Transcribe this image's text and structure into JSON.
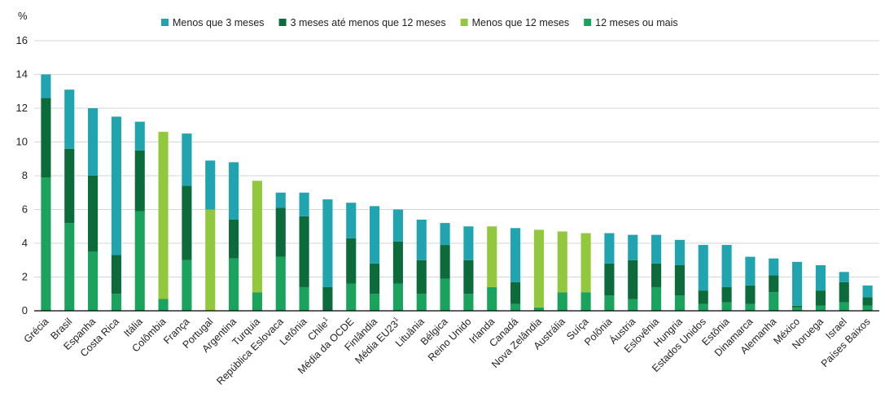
{
  "chart_data": {
    "type": "bar",
    "stacked": true,
    "ylabel": "%",
    "ylim": [
      0,
      16
    ],
    "yticks": [
      0,
      2,
      4,
      6,
      8,
      10,
      12,
      14,
      16
    ],
    "grid": true,
    "legend_position": "top",
    "categories": [
      "Grécia",
      "Brasil",
      "Espanha",
      "Costa Rica",
      "Itália",
      "Colômbia",
      "França",
      "Portugal",
      "Argentina",
      "Turquia",
      "República Eslovaca",
      "Letônia",
      "Chile",
      "Média da OCDE",
      "Finlândia",
      "Média EU23",
      "Lituânia",
      "Bélgica",
      "Reino Unido",
      "Irlanda",
      "Canadá",
      "Nova Zelândia",
      "Austrália",
      "Suíça",
      "Polônia",
      "Áustria",
      "Eslovênia",
      "Hungria",
      "Estados Unidos",
      "Estônia",
      "Dinamarca",
      "Alemanha",
      "México",
      "Noruega",
      "Israel",
      "Países Baixos"
    ],
    "category_suffixes": [
      "",
      "",
      "",
      "",
      "",
      "",
      "",
      "",
      "",
      "",
      "",
      "",
      "1",
      "",
      "",
      "1",
      "",
      "",
      "",
      "",
      "",
      "",
      "",
      "",
      "",
      "",
      "",
      "",
      "",
      "",
      "",
      "",
      "",
      "",
      "",
      ""
    ],
    "series": [
      {
        "name": "12 meses ou mais",
        "color": "#1aa35c",
        "values": [
          7.9,
          5.2,
          3.5,
          1.0,
          5.9,
          0.7,
          3.0,
          0,
          3.1,
          1.1,
          3.2,
          1.4,
          0,
          1.6,
          1.0,
          1.6,
          1.0,
          1.9,
          1.0,
          1.4,
          0.4,
          0.2,
          1.1,
          1.1,
          0.9,
          0.7,
          1.4,
          0.9,
          0.4,
          0.5,
          0.4,
          1.1,
          0.2,
          0.3,
          0.5,
          0.3
        ]
      },
      {
        "name": "3 meses até menos que 12 meses",
        "color": "#0b6b3a",
        "values": [
          4.7,
          4.4,
          4.5,
          2.3,
          3.6,
          0,
          4.4,
          0,
          2.3,
          0,
          2.9,
          4.2,
          1.4,
          2.7,
          1.8,
          2.5,
          2.0,
          2.0,
          2.0,
          0,
          1.3,
          0,
          0,
          0,
          1.9,
          2.3,
          1.4,
          1.8,
          0.8,
          0.9,
          1.1,
          1.0,
          0.1,
          0.9,
          1.2,
          0.5
        ]
      },
      {
        "name": "Menos que 12 meses",
        "color": "#92c83e",
        "values": [
          0,
          0,
          0,
          0,
          0,
          9.9,
          0,
          6.0,
          0,
          6.6,
          0,
          0,
          0,
          0,
          0,
          0,
          0,
          0,
          0,
          3.6,
          0,
          4.6,
          3.6,
          3.5,
          0,
          0,
          0,
          0,
          0,
          0,
          0,
          0,
          0,
          0,
          0,
          0
        ]
      },
      {
        "name": "Menos que 3 meses",
        "color": "#20a4b0",
        "values": [
          1.4,
          3.5,
          4.0,
          8.2,
          1.7,
          0,
          3.1,
          2.9,
          3.4,
          0,
          0.9,
          1.4,
          5.2,
          2.1,
          3.4,
          1.9,
          2.4,
          1.3,
          2.0,
          0,
          3.2,
          0,
          0,
          0,
          1.8,
          1.5,
          1.7,
          1.5,
          2.7,
          2.5,
          1.7,
          1.0,
          2.6,
          1.5,
          0.6,
          0.7
        ]
      }
    ],
    "legend_order": [
      "Menos que 3 meses",
      "3 meses até menos que 12 meses",
      "Menos que 12 meses",
      "12 meses ou mais"
    ]
  }
}
